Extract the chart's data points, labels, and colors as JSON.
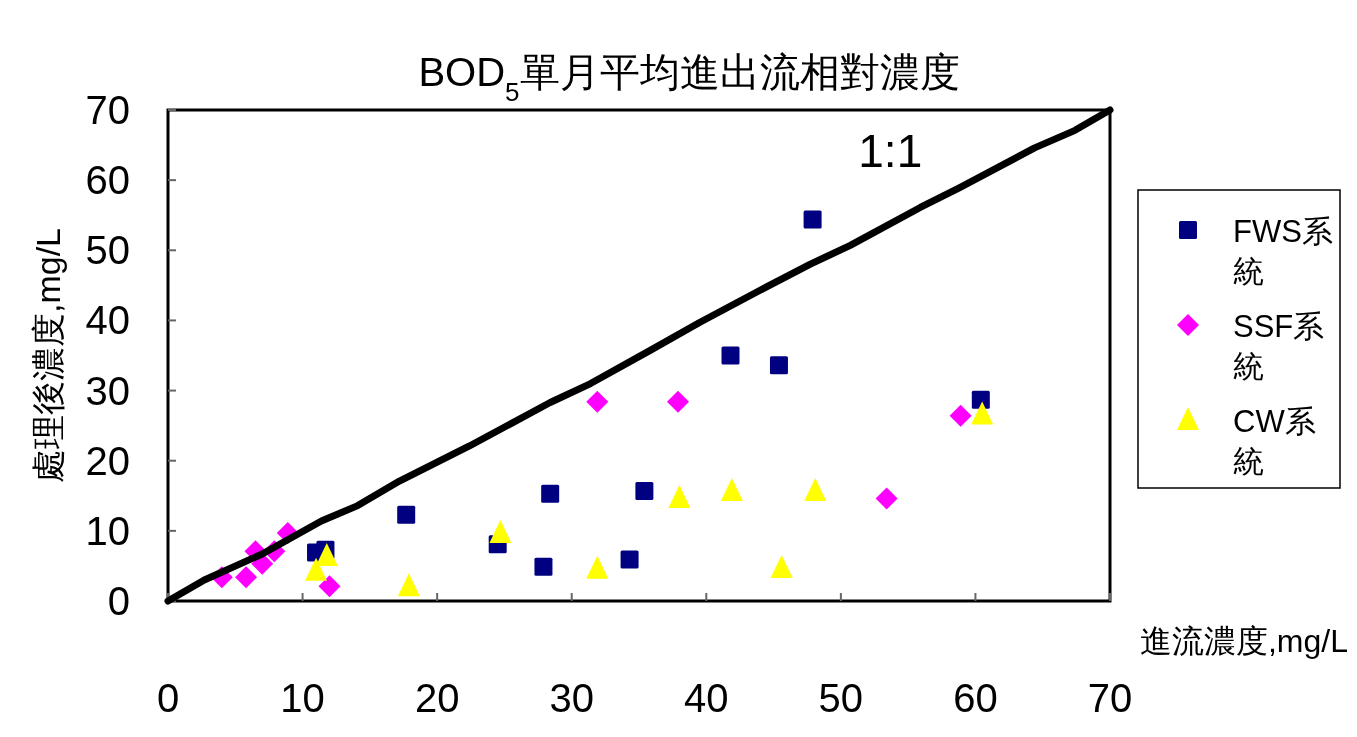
{
  "chart_data": {
    "type": "scatter",
    "title": "BOD$_{5}$單月平均進出流相對濃度",
    "xlabel": "進流濃度,mg/L",
    "ylabel": "處理後濃度,mg/L",
    "xlim": [
      0,
      70
    ],
    "ylim": [
      0,
      70
    ],
    "xticks": [
      0,
      10,
      20,
      30,
      40,
      50,
      60,
      70
    ],
    "yticks": [
      0,
      10,
      20,
      30,
      40,
      50,
      60,
      70
    ],
    "grid": false,
    "legend": "right",
    "series": [
      {
        "name": "FWS系統",
        "color": "#000080",
        "marker": "square",
        "x": [
          11.0,
          11.7,
          17.7,
          24.5,
          28.4,
          27.9,
          34.3,
          35.4,
          41.8,
          45.4,
          47.9,
          60.4
        ],
        "values": [
          6.9,
          7.3,
          12.3,
          8.1,
          15.3,
          4.9,
          5.9,
          15.7,
          35.0,
          33.6,
          54.4,
          28.7
        ]
      },
      {
        "name": "SSF系統",
        "color": "#ff00ff",
        "marker": "diamond",
        "x": [
          4.0,
          5.8,
          6.5,
          7.0,
          7.9,
          8.9,
          12.0,
          31.9,
          37.9,
          53.4,
          58.9
        ],
        "values": [
          3.4,
          3.4,
          7.1,
          5.3,
          7.1,
          9.7,
          2.1,
          28.4,
          28.4,
          14.6,
          26.4
        ]
      },
      {
        "name": "CW系統",
        "color": "#ffff00",
        "marker": "triangle",
        "x": [
          11.0,
          11.8,
          17.9,
          24.7,
          31.9,
          38.0,
          41.9,
          45.6,
          48.1,
          60.5
        ],
        "values": [
          4.3,
          6.4,
          2.1,
          9.7,
          4.6,
          14.7,
          15.7,
          4.7,
          15.7,
          26.6
        ]
      },
      {
        "name": "1:1",
        "type": "line",
        "color": "#000000",
        "line_style": "solid",
        "x": [
          0,
          2.7,
          7,
          11.4,
          14.1,
          17.2,
          22.4,
          28.4,
          31.4,
          35.8,
          39.5,
          44,
          47.7,
          50.7,
          55.9,
          58.8,
          64.4,
          67.4,
          70
        ],
        "values": [
          0,
          3,
          6.7,
          11.4,
          13.6,
          17.1,
          22.1,
          28.3,
          31,
          35.7,
          39.7,
          44.3,
          48,
          50.7,
          56.1,
          58.9,
          64.6,
          67.1,
          70
        ]
      }
    ]
  }
}
